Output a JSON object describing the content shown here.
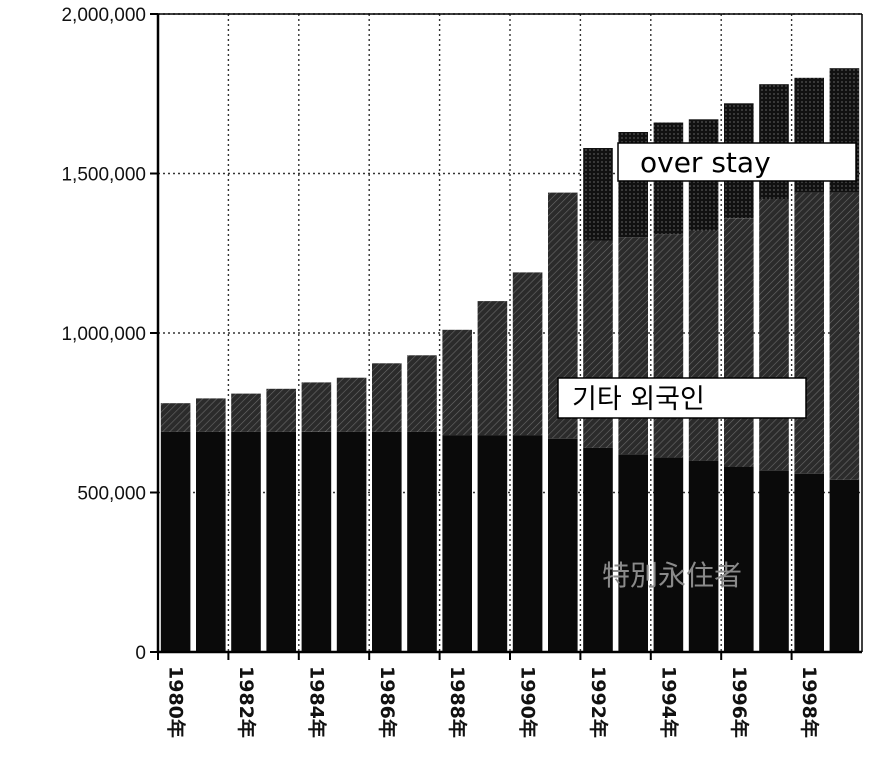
{
  "chart_data": {
    "type": "bar",
    "stacked": true,
    "ylim": [
      0,
      2000000
    ],
    "yticks": [
      {
        "value": 0,
        "label": "0"
      },
      {
        "value": 500000,
        "label": "500,000"
      },
      {
        "value": 1000000,
        "label": "1,000,000"
      },
      {
        "value": 1500000,
        "label": "1,500,000"
      },
      {
        "value": 2000000,
        "label": "2,000,000"
      }
    ],
    "x": [
      1980,
      1981,
      1982,
      1983,
      1984,
      1985,
      1986,
      1987,
      1988,
      1989,
      1990,
      1991,
      1992,
      1993,
      1994,
      1995,
      1996,
      1997,
      1998,
      1999
    ],
    "xtick_labels": [
      "1980年",
      "",
      "1982年",
      "",
      "1984年",
      "",
      "1986年",
      "",
      "1988年",
      "",
      "1990年",
      "",
      "1992年",
      "",
      "1994年",
      "",
      "1996年",
      "",
      "1998年",
      ""
    ],
    "series": [
      {
        "name": "特別永住者",
        "color": "#0a0a0a",
        "values": [
          690000,
          690000,
          690000,
          690000,
          690000,
          690000,
          690000,
          690000,
          680000,
          680000,
          680000,
          670000,
          640000,
          620000,
          610000,
          600000,
          580000,
          570000,
          560000,
          540000
        ]
      },
      {
        "name": "기타 외국인",
        "color": "#2e2e2e",
        "values": [
          90000,
          105000,
          120000,
          135000,
          155000,
          170000,
          215000,
          240000,
          330000,
          420000,
          510000,
          770000,
          650000,
          680000,
          700000,
          720000,
          780000,
          850000,
          880000,
          900000
        ]
      },
      {
        "name": "over stay",
        "color": "#141414",
        "values": [
          0,
          0,
          0,
          0,
          0,
          0,
          0,
          0,
          0,
          0,
          0,
          0,
          290000,
          330000,
          350000,
          350000,
          360000,
          360000,
          360000,
          390000
        ]
      }
    ],
    "annotations": {
      "overstay": "over stay",
      "other": "기타 외국인",
      "special": "特別永住者"
    },
    "grid": true,
    "legend": "none"
  }
}
